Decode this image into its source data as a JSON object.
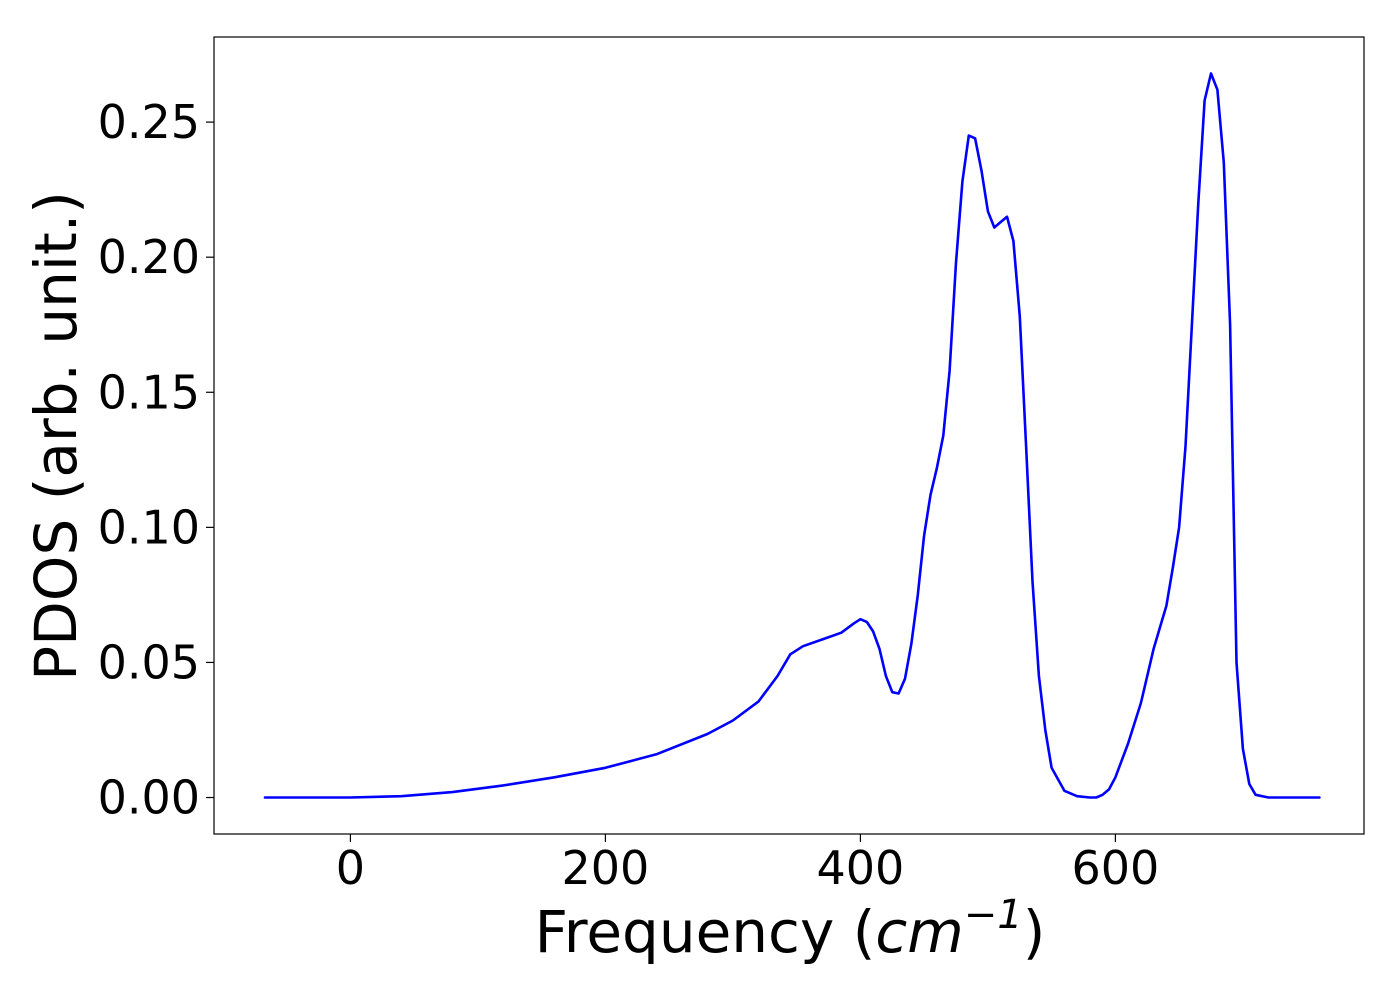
{
  "chart_data": {
    "type": "line",
    "title": "",
    "xlabel": "Frequency",
    "xlabel_unit_open": "(",
    "xlabel_unit_base": "cm",
    "xlabel_unit_exp": "−1",
    "xlabel_unit_close": ")",
    "ylabel": "PDOS (arb. unit.)",
    "xlim": [
      -107,
      795
    ],
    "ylim": [
      -0.0135,
      0.2815
    ],
    "xticks": [
      0,
      200,
      400,
      600
    ],
    "xtick_labels": [
      "0",
      "200",
      "400",
      "600"
    ],
    "yticks": [
      0.0,
      0.05,
      0.1,
      0.15,
      0.2,
      0.25
    ],
    "ytick_labels": [
      "0.00",
      "0.05",
      "0.10",
      "0.15",
      "0.20",
      "0.25"
    ],
    "grid": false,
    "series": [
      {
        "color": "#0000ff",
        "x": [
          -67,
          0,
          40,
          80,
          120,
          160,
          200,
          240,
          280,
          300,
          320,
          335,
          345,
          355,
          370,
          385,
          395,
          400,
          405,
          410,
          415,
          420,
          425,
          430,
          435,
          440,
          445,
          450,
          455,
          460,
          465,
          470,
          475,
          480,
          485,
          490,
          495,
          500,
          505,
          510,
          515,
          520,
          525,
          530,
          535,
          540,
          545,
          550,
          560,
          570,
          580,
          585,
          590,
          595,
          600,
          610,
          620,
          630,
          635,
          640,
          645,
          650,
          655,
          660,
          665,
          670,
          675,
          680,
          685,
          690,
          695,
          700,
          705,
          710,
          720,
          760
        ],
        "y": [
          0.0,
          0.0,
          0.0005,
          0.002,
          0.0045,
          0.0075,
          0.011,
          0.016,
          0.0235,
          0.0285,
          0.0355,
          0.045,
          0.053,
          0.056,
          0.0585,
          0.061,
          0.0645,
          0.066,
          0.065,
          0.0615,
          0.055,
          0.045,
          0.039,
          0.0385,
          0.044,
          0.057,
          0.075,
          0.097,
          0.112,
          0.122,
          0.134,
          0.158,
          0.198,
          0.228,
          0.245,
          0.244,
          0.232,
          0.217,
          0.211,
          0.213,
          0.215,
          0.206,
          0.178,
          0.13,
          0.08,
          0.045,
          0.025,
          0.011,
          0.0025,
          0.0005,
          0.0,
          0.0,
          0.001,
          0.003,
          0.0075,
          0.02,
          0.035,
          0.055,
          0.063,
          0.071,
          0.085,
          0.1,
          0.13,
          0.175,
          0.22,
          0.258,
          0.268,
          0.262,
          0.235,
          0.175,
          0.05,
          0.018,
          0.005,
          0.001,
          0.0,
          0.0
        ]
      }
    ]
  }
}
